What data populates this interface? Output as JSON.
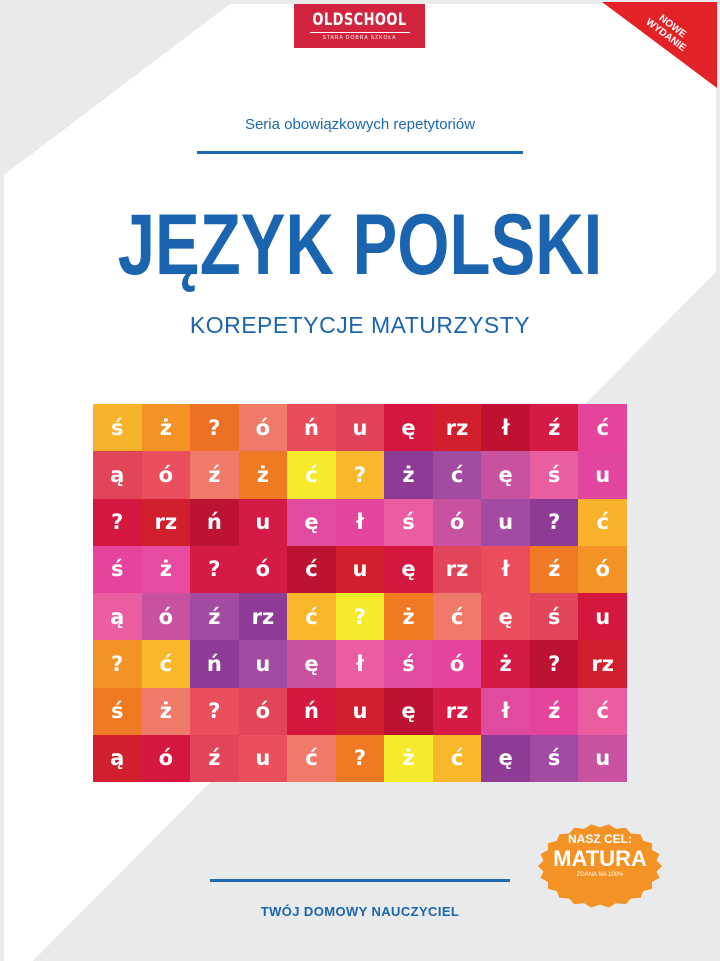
{
  "publisher": {
    "logo_text": "OLDSCHOOL",
    "logo_tagline": "STARA DOBRA SZKOŁA",
    "brand_color": "#d3243f"
  },
  "corner_ribbon": {
    "line1": "NOWE",
    "line2": "WYDANIE",
    "color": "#e32227"
  },
  "series": "Seria obowiązkowych repetytoriów",
  "title": "JĘZYK POLSKI",
  "subtitle": "KOREPETYCJE MATURZYSTY",
  "accent_color": "#1b64af",
  "letter_grid": {
    "rows": [
      [
        "ś",
        "ż",
        "?",
        "ó",
        "ń",
        "u",
        "ę",
        "rz",
        "ł",
        "ź",
        "ć"
      ],
      [
        "ą",
        "ó",
        "ź",
        "ż",
        "ć",
        "?",
        "ż",
        "ć",
        "ę",
        "ś",
        "u"
      ],
      [
        "?",
        "rz",
        "ń",
        "u",
        "ę",
        "ł",
        "ś",
        "ó",
        "u",
        "?",
        "ć"
      ],
      [
        "ś",
        "ż",
        "?",
        "ó",
        "ć",
        "u",
        "ę",
        "rz",
        "ł",
        "ź",
        "ó"
      ],
      [
        "ą",
        "ó",
        "ź",
        "rz",
        "ć",
        "?",
        "ż",
        "ć",
        "ę",
        "ś",
        "u"
      ],
      [
        "?",
        "ć",
        "ń",
        "u",
        "ę",
        "ł",
        "ś",
        "ó",
        "ż",
        "?",
        "rz"
      ],
      [
        "ś",
        "ż",
        "?",
        "ó",
        "ń",
        "u",
        "ę",
        "rz",
        "ł",
        "ź",
        "ć"
      ],
      [
        "ą",
        "ó",
        "ź",
        "u",
        "ć",
        "?",
        "ż",
        "ć",
        "ę",
        "ś",
        "u"
      ]
    ],
    "colors": [
      [
        "#f7b32b",
        "#f39325",
        "#ee7024",
        "#f07a6a",
        "#e94d5a",
        "#e2435a",
        "#d5173f",
        "#d11f2e",
        "#bf1233",
        "#d41a45",
        "#e6449c"
      ],
      [
        "#e0455a",
        "#ea4f5e",
        "#f07a6a",
        "#f07a24",
        "#f5eb2a",
        "#f9b72c",
        "#8e3b96",
        "#a24ba0",
        "#c8529f",
        "#e85e9e",
        "#e2459d"
      ],
      [
        "#d5173f",
        "#d11f2e",
        "#bd1333",
        "#d51a45",
        "#e14b9f",
        "#e5469d",
        "#ea5da1",
        "#c8529f",
        "#a34aa3",
        "#8e3b96",
        "#f8b22b"
      ],
      [
        "#e6449c",
        "#e64ba0",
        "#d51a45",
        "#d51a45",
        "#bd1333",
        "#d11f2e",
        "#d5173f",
        "#e2455a",
        "#ed4c5d",
        "#f07a24",
        "#f39325"
      ],
      [
        "#ea5da1",
        "#c8529f",
        "#a34aa3",
        "#8e3b96",
        "#f9b72c",
        "#f5eb2a",
        "#f07a24",
        "#f07a6a",
        "#ea4f5e",
        "#e0455a",
        "#d5173f"
      ],
      [
        "#f39325",
        "#f9b72c",
        "#8e3b96",
        "#a34aa3",
        "#c8529f",
        "#ea5da1",
        "#e14b9f",
        "#e6449c",
        "#d51a45",
        "#bd1333",
        "#d11f2e"
      ],
      [
        "#f07a24",
        "#f07a6a",
        "#ea4f5e",
        "#e0455a",
        "#d5173f",
        "#d11f2e",
        "#bd1333",
        "#d51a45",
        "#e14b9f",
        "#e6449c",
        "#ea5da1"
      ],
      [
        "#d11f2e",
        "#d5173f",
        "#e0455a",
        "#ea4f5e",
        "#f07a6a",
        "#f07a24",
        "#f5eb2a",
        "#f9b72c",
        "#8e3b96",
        "#a34aa3",
        "#c8529f"
      ]
    ]
  },
  "badge": {
    "line1": "NASZ CEL:",
    "line2": "MATURA",
    "line3": "ZDANA NA 100%",
    "color": "#f39325"
  },
  "bottom_text": "TWÓJ DOMOWY NAUCZYCIEL"
}
